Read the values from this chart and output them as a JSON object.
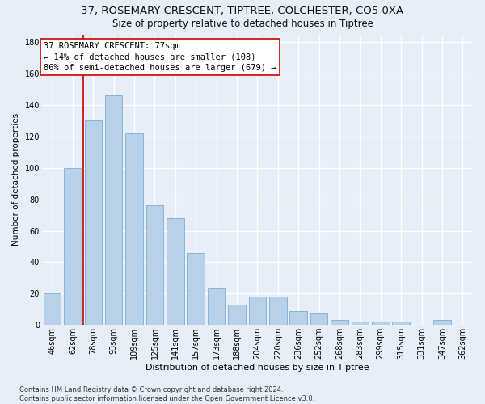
{
  "title": "37, ROSEMARY CRESCENT, TIPTREE, COLCHESTER, CO5 0XA",
  "subtitle": "Size of property relative to detached houses in Tiptree",
  "xlabel": "Distribution of detached houses by size in Tiptree",
  "ylabel": "Number of detached properties",
  "categories": [
    "46sqm",
    "62sqm",
    "78sqm",
    "93sqm",
    "109sqm",
    "125sqm",
    "141sqm",
    "157sqm",
    "173sqm",
    "188sqm",
    "204sqm",
    "220sqm",
    "236sqm",
    "252sqm",
    "268sqm",
    "283sqm",
    "299sqm",
    "315sqm",
    "331sqm",
    "347sqm",
    "362sqm"
  ],
  "values": [
    20,
    100,
    130,
    146,
    122,
    76,
    68,
    46,
    23,
    13,
    18,
    18,
    9,
    8,
    3,
    2,
    2,
    2,
    0,
    3,
    0
  ],
  "bar_color": "#b8d0e8",
  "bar_edge_color": "#7aafd4",
  "vline_color": "#cc0000",
  "vline_index": 1.5,
  "annotation_text": "37 ROSEMARY CRESCENT: 77sqm\n← 14% of detached houses are smaller (108)\n86% of semi-detached houses are larger (679) →",
  "annotation_box_facecolor": "#ffffff",
  "annotation_box_edgecolor": "#cc0000",
  "ylim": [
    0,
    185
  ],
  "yticks": [
    0,
    20,
    40,
    60,
    80,
    100,
    120,
    140,
    160,
    180
  ],
  "bg_color": "#e8eef8",
  "grid_color": "#ffffff",
  "title_fontsize": 9.5,
  "subtitle_fontsize": 8.5,
  "xlabel_fontsize": 8,
  "ylabel_fontsize": 7.5,
  "tick_fontsize": 7,
  "annotation_fontsize": 7.5,
  "footer_fontsize": 6,
  "footer": "Contains HM Land Registry data © Crown copyright and database right 2024.\nContains public sector information licensed under the Open Government Licence v3.0."
}
